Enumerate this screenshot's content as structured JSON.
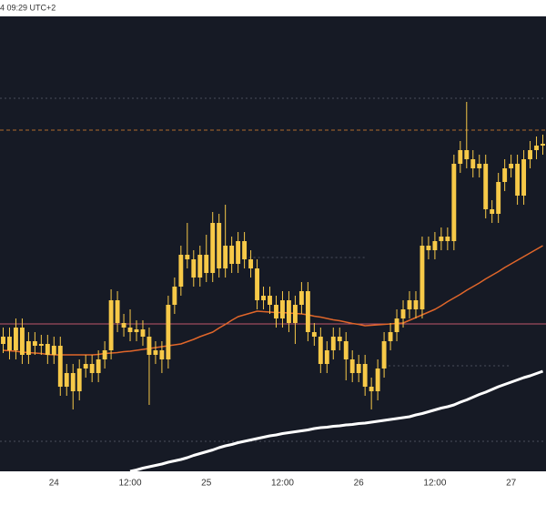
{
  "chart_data": {
    "type": "candlestick",
    "header": "4 09:29 UTC+2",
    "categories": [
      null,
      null,
      null,
      null,
      null,
      null,
      null,
      null,
      "24",
      null,
      null,
      null,
      null,
      null,
      null,
      null,
      null,
      null,
      null,
      null,
      "12:00",
      null,
      null,
      null,
      null,
      null,
      null,
      null,
      null,
      null,
      null,
      null,
      "25",
      null,
      null,
      null,
      null,
      null,
      null,
      null,
      null,
      null,
      null,
      null,
      "12:00",
      null,
      null,
      null,
      null,
      null,
      null,
      null,
      null,
      null,
      null,
      null,
      "26",
      null,
      null,
      null,
      null,
      null,
      null,
      null,
      null,
      null,
      null,
      null,
      "12:00",
      null,
      null,
      null,
      null,
      null,
      null,
      null,
      null,
      null,
      null,
      null,
      "27",
      null,
      null,
      null,
      null,
      null
    ],
    "ylim": [
      0,
      100
    ],
    "candle_color": "#f7c948",
    "open": [
      28,
      29.6,
      26.6,
      31.6,
      25.6,
      28.6,
      27.6,
      28,
      25.6,
      27.6,
      18.6,
      21.6,
      17.6,
      22.6,
      23.6,
      21.6,
      24.6,
      26.6,
      37.6,
      32.6,
      31.6,
      30.6,
      31.2,
      29.6,
      25.6,
      26.6,
      24.6,
      36.6,
      40.6,
      47.6,
      46.6,
      42.6,
      47.6,
      43.6,
      54.6,
      44.6,
      49.6,
      45.6,
      50.6,
      46.6,
      44.6,
      37.6,
      38.6,
      36.6,
      33.6,
      37.6,
      32.6,
      36.6,
      39.6,
      30.6,
      29.6,
      23.6,
      26.6,
      29.6,
      28.6,
      24.6,
      21.6,
      23.6,
      18.6,
      17.6,
      22.6,
      28.6,
      30.6,
      33.6,
      35.6,
      37.6,
      35.6,
      49.6,
      48.6,
      50.6,
      51.6,
      50.6,
      67.6,
      70.6,
      68.6,
      66.6,
      67.6,
      57.6,
      56.6,
      63.6,
      66.6,
      67.6,
      60.6,
      68.6,
      70.6,
      71.6
    ],
    "high": [
      31.6,
      31.6,
      33.6,
      33.6,
      30.6,
      30.6,
      30,
      30,
      29.6,
      29.6,
      23.6,
      23.6,
      24.6,
      25.6,
      25.6,
      26.6,
      28.6,
      40,
      39.6,
      34.6,
      35.6,
      33.2,
      33.2,
      31.6,
      28.6,
      28.6,
      38.6,
      42.6,
      49.6,
      54.6,
      48.6,
      49.6,
      52,
      57,
      56.6,
      58.6,
      51.6,
      52.6,
      52.6,
      48.6,
      46.6,
      40.6,
      40.6,
      38.6,
      39.6,
      39.6,
      38.6,
      41.6,
      41.6,
      32.6,
      31.6,
      28.6,
      31.6,
      31.6,
      30.6,
      26.6,
      25.6,
      25.6,
      20.6,
      24.6,
      30.6,
      32.6,
      35.6,
      37.6,
      39.6,
      39.6,
      51.6,
      51.6,
      52.6,
      53.6,
      53.6,
      69.6,
      72.6,
      81.2,
      70.6,
      69.6,
      69.6,
      59.6,
      65.6,
      68.6,
      69.6,
      69.6,
      70.6,
      72.6,
      73.6,
      74
    ],
    "low": [
      26,
      24.6,
      24.6,
      23.6,
      23.6,
      25.6,
      25.6,
      23.6,
      23.6,
      16.6,
      16.6,
      13.6,
      15.6,
      20.6,
      19.6,
      19.6,
      22.6,
      24.6,
      30.6,
      29.6,
      28.6,
      28.6,
      27.6,
      14.6,
      23.6,
      21.6,
      22.6,
      34.6,
      38.6,
      44.6,
      40.6,
      40.6,
      41.6,
      41.6,
      42.6,
      42.6,
      43.6,
      43.6,
      44.6,
      42.6,
      35.6,
      35.6,
      34.6,
      31.6,
      31.6,
      30.6,
      28,
      34.6,
      28.6,
      27.6,
      21.6,
      21.6,
      24.6,
      26.6,
      20,
      19.6,
      19.6,
      16.6,
      13.6,
      15.6,
      20.6,
      26.6,
      28.6,
      31.6,
      33.6,
      33.6,
      33.6,
      46.6,
      46.6,
      48.6,
      48.6,
      48.6,
      65.6,
      66.6,
      64.6,
      64.6,
      55.6,
      54.6,
      54.6,
      61.6,
      64.6,
      58.6,
      58.6,
      66.6,
      68.6,
      69.6
    ],
    "close": [
      29.6,
      26.6,
      31.6,
      25.6,
      28.6,
      27.6,
      28,
      25.6,
      27.6,
      18.6,
      21.6,
      17.6,
      22.6,
      23.6,
      21.6,
      24.6,
      26.6,
      37.6,
      32.6,
      31.6,
      30.6,
      31.2,
      29.6,
      25.6,
      26.6,
      24.6,
      36.6,
      40.6,
      47.6,
      46.6,
      42.6,
      47.6,
      43.6,
      54.6,
      44.6,
      49.6,
      45.6,
      50.6,
      46.6,
      44.6,
      37.6,
      38.6,
      36.6,
      33.6,
      37.6,
      32.6,
      36.6,
      39.6,
      30.6,
      29.6,
      23.6,
      26.6,
      29.6,
      28.6,
      24.6,
      21.6,
      23.6,
      18.6,
      17.6,
      22.6,
      28.6,
      30.6,
      33.6,
      35.6,
      37.6,
      35.6,
      49.6,
      48.6,
      50.6,
      51.6,
      50.6,
      67.6,
      70.6,
      68.6,
      66.6,
      67.6,
      57.6,
      56.6,
      63.6,
      66.6,
      67.6,
      60.6,
      68.6,
      70.6,
      71.6,
      72
    ],
    "lines": [
      {
        "color": "#e0662a",
        "width": 1.5,
        "values": [
          26.6,
          26.5,
          26.4,
          26.2,
          26.1,
          26,
          25.9,
          25.7,
          25.6,
          25.6,
          25.6,
          25.6,
          25.6,
          25.6,
          25.6,
          25.7,
          25.9,
          26,
          26.1,
          26.3,
          26.4,
          26.6,
          26.8,
          27,
          27.2,
          27.4,
          27.6,
          27.8,
          28,
          28.5,
          29,
          29.6,
          30.1,
          30.6,
          31.5,
          32.3,
          33.2,
          34,
          34.4,
          34.8,
          35.2,
          35.1,
          35,
          34.9,
          34.9,
          34.8,
          34.7,
          34.6,
          34.4,
          34.1,
          33.9,
          33.6,
          33.3,
          33.1,
          32.8,
          32.5,
          32.3,
          32,
          32.1,
          32.2,
          32.3,
          32.4,
          32.5,
          32.6,
          33.2,
          33.8,
          34.4,
          35,
          35.6,
          36.4,
          37.3,
          38.1,
          38.9,
          39.8,
          40.6,
          41.4,
          42.3,
          43.1,
          43.9,
          44.8,
          45.6,
          46.4,
          47.2,
          48,
          48.8,
          49.6
        ]
      },
      {
        "color": "#ffffff",
        "width": 3,
        "values": [
          null,
          null,
          null,
          null,
          null,
          null,
          null,
          null,
          null,
          null,
          null,
          null,
          null,
          null,
          null,
          null,
          null,
          null,
          null,
          null,
          0,
          0.3,
          0.7,
          1,
          1.3,
          1.6,
          2,
          2.3,
          2.6,
          3,
          3.5,
          3.9,
          4.3,
          4.7,
          5.2,
          5.6,
          5.9,
          6.3,
          6.6,
          6.9,
          7.2,
          7.5,
          7.8,
          8,
          8.3,
          8.5,
          8.7,
          8.9,
          9.1,
          9.4,
          9.6,
          9.7,
          9.9,
          10,
          10.2,
          10.3,
          10.5,
          10.6,
          10.8,
          11,
          11.2,
          11.4,
          11.6,
          11.8,
          12,
          12.4,
          12.7,
          13.1,
          13.5,
          13.9,
          14.2,
          14.6,
          15.2,
          15.7,
          16.3,
          16.9,
          17.4,
          18,
          18.6,
          19.1,
          19.6,
          20.1,
          20.6,
          21,
          21.5,
          22
        ]
      }
    ],
    "levels": [
      {
        "value": 82,
        "color": "#4a4f5c",
        "dash": "2 3"
      },
      {
        "value": 75,
        "color": "#b06a2c",
        "dash": "4 3"
      },
      {
        "value": 32.4,
        "color": "#c0566a",
        "dash": "none"
      },
      {
        "value": 6.6,
        "color": "#4a4f5c",
        "dash": "2 3"
      },
      {
        "value": 47,
        "color": "#4a4f5c",
        "dash": "2 3",
        "from": 38,
        "to": 57
      },
      {
        "value": 23.2,
        "color": "#4a4f5c",
        "dash": "2 3",
        "from": 60,
        "to": 80
      }
    ]
  }
}
